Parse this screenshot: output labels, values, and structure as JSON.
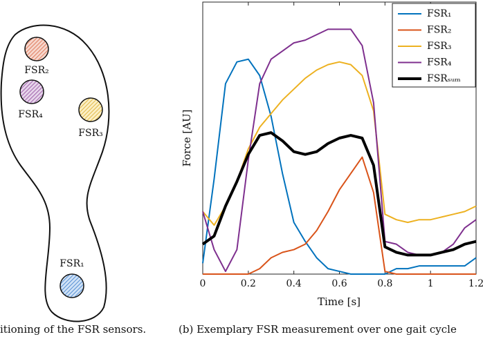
{
  "figure_a": {
    "sensors": [
      "FSR₂",
      "FSR₄",
      "FSR₃",
      "FSR₁"
    ],
    "caption": "itioning of the FSR sensors."
  },
  "chart_data": {
    "type": "line",
    "caption": "(b) Exemplary FSR measurement over one gait cycle",
    "x_label": "Time [s]",
    "y_label": "Force [AU]",
    "x": [
      0,
      0.05,
      0.1,
      0.15,
      0.2,
      0.25,
      0.3,
      0.35,
      0.4,
      0.45,
      0.5,
      0.55,
      0.6,
      0.65,
      0.7,
      0.75,
      0.8,
      0.85,
      0.9,
      0.95,
      1.0,
      1.05,
      1.1,
      1.15,
      1.2
    ],
    "series": [
      {
        "name": "FSR₁",
        "color": "#0072bd",
        "width": 2,
        "values": [
          0.04,
          0.35,
          0.7,
          0.78,
          0.79,
          0.73,
          0.58,
          0.37,
          0.19,
          0.12,
          0.06,
          0.02,
          0.01,
          0,
          0,
          0,
          0,
          0.02,
          0.02,
          0.03,
          0.03,
          0.03,
          0.03,
          0.03,
          0.06
        ]
      },
      {
        "name": "FSR₂",
        "color": "#d95319",
        "width": 2,
        "values": [
          0,
          0,
          0,
          0,
          0,
          0.02,
          0.06,
          0.08,
          0.09,
          0.11,
          0.16,
          0.23,
          0.31,
          0.37,
          0.43,
          0.3,
          0.01,
          0,
          0,
          0,
          0,
          0,
          0,
          0,
          0
        ]
      },
      {
        "name": "FSR₃",
        "color": "#edb120",
        "width": 2,
        "values": [
          0.23,
          0.18,
          0.25,
          0.34,
          0.46,
          0.54,
          0.59,
          0.64,
          0.68,
          0.72,
          0.75,
          0.77,
          0.78,
          0.77,
          0.73,
          0.6,
          0.22,
          0.2,
          0.19,
          0.2,
          0.2,
          0.21,
          0.22,
          0.23,
          0.25
        ]
      },
      {
        "name": "FSR₄",
        "color": "#7e2f8e",
        "width": 2,
        "values": [
          0.23,
          0.09,
          0.01,
          0.09,
          0.42,
          0.7,
          0.79,
          0.82,
          0.85,
          0.86,
          0.88,
          0.9,
          0.9,
          0.9,
          0.84,
          0.63,
          0.12,
          0.11,
          0.08,
          0.07,
          0.07,
          0.08,
          0.11,
          0.17,
          0.2
        ]
      },
      {
        "name": "FSRₛᵤₘ",
        "color": "#000000",
        "width": 4,
        "values": [
          0.11,
          0.14,
          0.25,
          0.34,
          0.44,
          0.51,
          0.52,
          0.49,
          0.45,
          0.44,
          0.45,
          0.48,
          0.5,
          0.51,
          0.5,
          0.4,
          0.1,
          0.08,
          0.07,
          0.07,
          0.07,
          0.08,
          0.09,
          0.11,
          0.12
        ]
      }
    ],
    "xlim": [
      0,
      1.2
    ],
    "xticks": [
      0,
      0.2,
      0.4,
      0.6,
      0.8,
      1,
      1.2
    ],
    "ylim": [
      0,
      1
    ],
    "legend": "upper right"
  }
}
